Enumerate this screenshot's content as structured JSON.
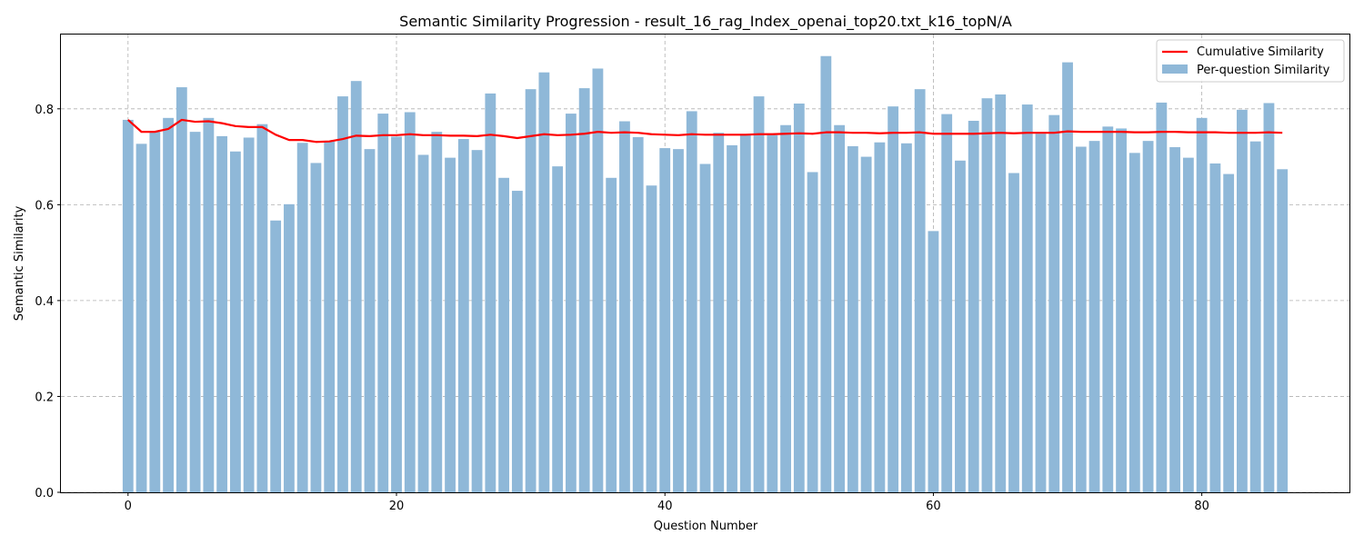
{
  "chart_data": {
    "type": "bar+line",
    "title": "Semantic Similarity Progression - result_16_rag_Index_openai_top20.txt_k16_topN/A",
    "xlabel": "Question Number",
    "ylabel": "Semantic Similarity",
    "xlim": [
      -5,
      91
    ],
    "ylim": [
      0,
      0.955
    ],
    "xticks": [
      0,
      20,
      40,
      60,
      80
    ],
    "xtick_labels": [
      "0",
      "20",
      "40",
      "60",
      "80"
    ],
    "yticks": [
      0.0,
      0.2,
      0.4,
      0.6,
      0.8
    ],
    "ytick_labels": [
      "0.0",
      "0.2",
      "0.4",
      "0.6",
      "0.8"
    ],
    "grid": true,
    "legend_position": "top-right",
    "series": [
      {
        "name": "Cumulative Similarity",
        "kind": "line",
        "color": "#ff0000",
        "values": [
          0.777,
          0.752,
          0.752,
          0.758,
          0.777,
          0.773,
          0.774,
          0.77,
          0.764,
          0.762,
          0.762,
          0.746,
          0.735,
          0.735,
          0.731,
          0.732,
          0.737,
          0.744,
          0.743,
          0.745,
          0.745,
          0.747,
          0.745,
          0.745,
          0.744,
          0.744,
          0.743,
          0.746,
          0.743,
          0.739,
          0.743,
          0.747,
          0.745,
          0.746,
          0.748,
          0.752,
          0.75,
          0.751,
          0.75,
          0.747,
          0.746,
          0.745,
          0.747,
          0.746,
          0.746,
          0.746,
          0.746,
          0.747,
          0.747,
          0.748,
          0.749,
          0.748,
          0.751,
          0.751,
          0.75,
          0.75,
          0.749,
          0.75,
          0.75,
          0.751,
          0.748,
          0.748,
          0.748,
          0.748,
          0.749,
          0.75,
          0.749,
          0.75,
          0.75,
          0.75,
          0.753,
          0.752,
          0.752,
          0.752,
          0.752,
          0.751,
          0.751,
          0.752,
          0.752,
          0.751,
          0.751,
          0.751,
          0.75,
          0.75,
          0.75,
          0.751,
          0.75
        ]
      },
      {
        "name": "Per-question Similarity",
        "kind": "bar",
        "color": "#8fb8d8",
        "values": [
          0.777,
          0.727,
          0.752,
          0.781,
          0.845,
          0.752,
          0.781,
          0.743,
          0.711,
          0.74,
          0.768,
          0.567,
          0.601,
          0.729,
          0.687,
          0.732,
          0.826,
          0.858,
          0.716,
          0.79,
          0.742,
          0.793,
          0.704,
          0.752,
          0.698,
          0.737,
          0.714,
          0.832,
          0.656,
          0.629,
          0.841,
          0.876,
          0.68,
          0.79,
          0.843,
          0.884,
          0.656,
          0.774,
          0.741,
          0.64,
          0.718,
          0.716,
          0.795,
          0.685,
          0.75,
          0.724,
          0.746,
          0.826,
          0.745,
          0.766,
          0.811,
          0.668,
          0.91,
          0.766,
          0.722,
          0.7,
          0.73,
          0.805,
          0.728,
          0.841,
          0.545,
          0.789,
          0.692,
          0.775,
          0.822,
          0.83,
          0.666,
          0.809,
          0.748,
          0.787,
          0.897,
          0.721,
          0.733,
          0.763,
          0.759,
          0.708,
          0.733,
          0.813,
          0.72,
          0.698,
          0.781,
          0.686,
          0.664,
          0.798,
          0.732,
          0.812,
          0.674
        ]
      }
    ]
  }
}
